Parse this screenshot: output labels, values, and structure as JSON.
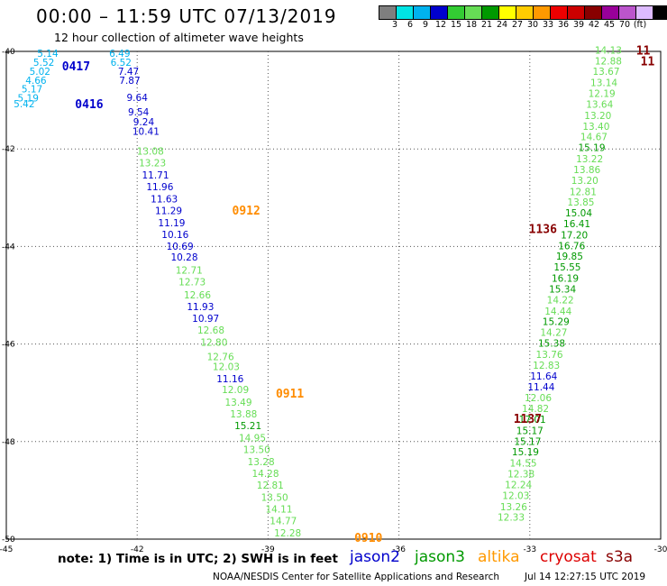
{
  "header": {
    "title": "00:00 – 11:59 UTC 07/13/2019",
    "subtitle": "12 hour collection of altimeter wave heights"
  },
  "colorbar": {
    "colors": [
      "#7f7f7f",
      "#00e5e5",
      "#00b2ee",
      "#0000cd",
      "#33cc33",
      "#66dd55",
      "#009900",
      "#ffff00",
      "#ffcc00",
      "#ff9900",
      "#ee0000",
      "#cc0000",
      "#880000",
      "#990099",
      "#bb55cc",
      "#ddbbff",
      "#000000"
    ],
    "labels": [
      "3",
      "6",
      "9",
      "12",
      "15",
      "18",
      "21",
      "24",
      "27",
      "30",
      "33",
      "36",
      "39",
      "42",
      "45",
      "70",
      "(ft)"
    ]
  },
  "chart_data": {
    "type": "scatter",
    "xlim": [
      -45,
      -30
    ],
    "ylim": [
      -50,
      -40
    ],
    "grid": true,
    "xticks": [
      "-45",
      "-42",
      "-39",
      "-36",
      "-33",
      "-30"
    ],
    "yticks": [
      "-40",
      "-42",
      "-44",
      "-46",
      "-48",
      "-50"
    ],
    "tracks": [
      {
        "name": "0416/0417",
        "labels": [
          {
            "text": "0417",
            "color": "#0000cc",
            "lon": -43.4,
            "lat": -40.3
          },
          {
            "text": "0416",
            "color": "#0000cc",
            "lon": -43.1,
            "lat": -41.07
          }
        ],
        "points": [
          {
            "lon": -44.05,
            "lat": -40.04,
            "v": "5.14",
            "c": "#00b2ee"
          },
          {
            "lon": -44.14,
            "lat": -40.22,
            "v": "5.52",
            "c": "#00b2ee"
          },
          {
            "lon": -44.23,
            "lat": -40.41,
            "v": "5.02",
            "c": "#00b2ee"
          },
          {
            "lon": -44.32,
            "lat": -40.59,
            "v": "4.66",
            "c": "#00b2ee"
          },
          {
            "lon": -44.41,
            "lat": -40.77,
            "v": "5.17",
            "c": "#00b2ee"
          },
          {
            "lon": -44.5,
            "lat": -40.95,
            "v": "5.19",
            "c": "#00b2ee"
          },
          {
            "lon": -44.59,
            "lat": -41.07,
            "v": "5.42",
            "c": "#00b2ee"
          }
        ]
      },
      {
        "name": "0912/0911/0910",
        "labels": [
          {
            "text": "0912",
            "color": "#ff8c00",
            "lon": -39.5,
            "lat": -43.25
          },
          {
            "text": "0911",
            "color": "#ff8c00",
            "lon": -38.5,
            "lat": -47.01
          },
          {
            "text": "0910",
            "color": "#ff8c00",
            "lon": -36.7,
            "lat": -49.96
          }
        ],
        "points": [
          {
            "lon": -42.4,
            "lat": -40.04,
            "v": "6.49",
            "c": "#00b2ee"
          },
          {
            "lon": -42.37,
            "lat": -40.22,
            "v": "6.52",
            "c": "#00b2ee"
          },
          {
            "lon": -42.2,
            "lat": -40.41,
            "v": "7.47",
            "c": "#0000cd"
          },
          {
            "lon": -42.17,
            "lat": -40.59,
            "v": "7.87",
            "c": "#0000cd"
          },
          {
            "lon": -42.0,
            "lat": -40.94,
            "v": "9.64",
            "c": "#0000cd"
          },
          {
            "lon": -41.97,
            "lat": -41.24,
            "v": "9.54",
            "c": "#0000cd"
          },
          {
            "lon": -41.85,
            "lat": -41.44,
            "v": "9.24",
            "c": "#0000cd"
          },
          {
            "lon": -41.8,
            "lat": -41.64,
            "v": "10.41",
            "c": "#0000cd"
          },
          {
            "lon": -41.7,
            "lat": -42.04,
            "v": "13.08",
            "c": "#66dd55"
          },
          {
            "lon": -41.65,
            "lat": -42.28,
            "v": "13.23",
            "c": "#66dd55"
          },
          {
            "lon": -41.58,
            "lat": -42.53,
            "v": "11.71",
            "c": "#0000cd"
          },
          {
            "lon": -41.48,
            "lat": -42.77,
            "v": "11.96",
            "c": "#0000cd"
          },
          {
            "lon": -41.38,
            "lat": -43.02,
            "v": "11.63",
            "c": "#0000cd"
          },
          {
            "lon": -41.28,
            "lat": -43.26,
            "v": "11.29",
            "c": "#0000cd"
          },
          {
            "lon": -41.21,
            "lat": -43.51,
            "v": "11.19",
            "c": "#0000cd"
          },
          {
            "lon": -41.13,
            "lat": -43.75,
            "v": "10.16",
            "c": "#0000cd"
          },
          {
            "lon": -41.02,
            "lat": -43.99,
            "v": "10.69",
            "c": "#0000cd"
          },
          {
            "lon": -40.92,
            "lat": -44.21,
            "v": "10.28",
            "c": "#0000cd"
          },
          {
            "lon": -40.81,
            "lat": -44.48,
            "v": "12.71",
            "c": "#66dd55"
          },
          {
            "lon": -40.74,
            "lat": -44.72,
            "v": "12.73",
            "c": "#66dd55"
          },
          {
            "lon": -40.62,
            "lat": -44.99,
            "v": "12.66",
            "c": "#66dd55"
          },
          {
            "lon": -40.55,
            "lat": -45.23,
            "v": "11.93",
            "c": "#0000cd"
          },
          {
            "lon": -40.43,
            "lat": -45.47,
            "v": "10.97",
            "c": "#0000cd"
          },
          {
            "lon": -40.31,
            "lat": -45.71,
            "v": "12.68",
            "c": "#66dd55"
          },
          {
            "lon": -40.24,
            "lat": -45.96,
            "v": "12.80",
            "c": "#66dd55"
          },
          {
            "lon": -40.09,
            "lat": -46.26,
            "v": "12.76",
            "c": "#66dd55"
          },
          {
            "lon": -39.96,
            "lat": -46.46,
            "v": "12.03",
            "c": "#66dd55"
          },
          {
            "lon": -39.87,
            "lat": -46.71,
            "v": "11.16",
            "c": "#0000cd"
          },
          {
            "lon": -39.75,
            "lat": -46.93,
            "v": "12.09",
            "c": "#66dd55"
          },
          {
            "lon": -39.68,
            "lat": -47.19,
            "v": "13.49",
            "c": "#66dd55"
          },
          {
            "lon": -39.56,
            "lat": -47.43,
            "v": "13.88",
            "c": "#66dd55"
          },
          {
            "lon": -39.46,
            "lat": -47.67,
            "v": "15.21",
            "c": "#009900"
          },
          {
            "lon": -39.36,
            "lat": -47.92,
            "v": "14.95",
            "c": "#66dd55"
          },
          {
            "lon": -39.26,
            "lat": -48.16,
            "v": "13.50",
            "c": "#66dd55"
          },
          {
            "lon": -39.16,
            "lat": -48.41,
            "v": "13.28",
            "c": "#66dd55"
          },
          {
            "lon": -39.06,
            "lat": -48.65,
            "v": "14.28",
            "c": "#66dd55"
          },
          {
            "lon": -38.95,
            "lat": -48.89,
            "v": "12.81",
            "c": "#66dd55"
          },
          {
            "lon": -38.85,
            "lat": -49.14,
            "v": "13.50",
            "c": "#66dd55"
          },
          {
            "lon": -38.75,
            "lat": -49.38,
            "v": "14.11",
            "c": "#66dd55"
          },
          {
            "lon": -38.65,
            "lat": -49.62,
            "v": "14.77",
            "c": "#66dd55"
          },
          {
            "lon": -38.55,
            "lat": -49.87,
            "v": "12.28",
            "c": "#66dd55"
          }
        ]
      },
      {
        "name": "1136/1137",
        "labels": [
          {
            "text": "1136",
            "color": "#880000",
            "lon": -32.7,
            "lat": -43.63
          },
          {
            "text": "1137",
            "color": "#880000",
            "lon": -33.05,
            "lat": -47.52
          },
          {
            "text": "11",
            "color": "#880000",
            "lon": -30.4,
            "lat": -39.97
          },
          {
            "text": "11",
            "color": "#880000",
            "lon": -30.3,
            "lat": -40.19
          }
        ],
        "points": [
          {
            "lon": -31.2,
            "lat": -39.97,
            "v": "14.13",
            "c": "#66dd55"
          },
          {
            "lon": -31.2,
            "lat": -40.19,
            "v": "12.88",
            "c": "#66dd55"
          },
          {
            "lon": -31.25,
            "lat": -40.41,
            "v": "13.67",
            "c": "#66dd55"
          },
          {
            "lon": -31.3,
            "lat": -40.64,
            "v": "13.14",
            "c": "#66dd55"
          },
          {
            "lon": -31.35,
            "lat": -40.86,
            "v": "12.19",
            "c": "#66dd55"
          },
          {
            "lon": -31.4,
            "lat": -41.08,
            "v": "13.64",
            "c": "#66dd55"
          },
          {
            "lon": -31.44,
            "lat": -41.31,
            "v": "13.20",
            "c": "#66dd55"
          },
          {
            "lon": -31.48,
            "lat": -41.53,
            "v": "13.40",
            "c": "#66dd55"
          },
          {
            "lon": -31.53,
            "lat": -41.75,
            "v": "14.67",
            "c": "#66dd55"
          },
          {
            "lon": -31.58,
            "lat": -41.97,
            "v": "15.19",
            "c": "#009900"
          },
          {
            "lon": -31.63,
            "lat": -42.2,
            "v": "13.22",
            "c": "#66dd55"
          },
          {
            "lon": -31.69,
            "lat": -42.42,
            "v": "13.86",
            "c": "#66dd55"
          },
          {
            "lon": -31.74,
            "lat": -42.64,
            "v": "13.20",
            "c": "#66dd55"
          },
          {
            "lon": -31.78,
            "lat": -42.87,
            "v": "12.81",
            "c": "#66dd55"
          },
          {
            "lon": -31.83,
            "lat": -43.09,
            "v": "13.85",
            "c": "#66dd55"
          },
          {
            "lon": -31.88,
            "lat": -43.31,
            "v": "15.04",
            "c": "#009900"
          },
          {
            "lon": -31.92,
            "lat": -43.53,
            "v": "16.41",
            "c": "#009900"
          },
          {
            "lon": -31.98,
            "lat": -43.76,
            "v": "17.20",
            "c": "#009900"
          },
          {
            "lon": -32.04,
            "lat": -43.98,
            "v": "16.76",
            "c": "#009900"
          },
          {
            "lon": -32.09,
            "lat": -44.2,
            "v": "19.85",
            "c": "#009900"
          },
          {
            "lon": -32.14,
            "lat": -44.42,
            "v": "15.55",
            "c": "#009900"
          },
          {
            "lon": -32.19,
            "lat": -44.65,
            "v": "16.19",
            "c": "#009900"
          },
          {
            "lon": -32.25,
            "lat": -44.87,
            "v": "15.34",
            "c": "#009900"
          },
          {
            "lon": -32.3,
            "lat": -45.09,
            "v": "14.22",
            "c": "#66dd55"
          },
          {
            "lon": -32.35,
            "lat": -45.32,
            "v": "14.44",
            "c": "#66dd55"
          },
          {
            "lon": -32.4,
            "lat": -45.54,
            "v": "15.29",
            "c": "#009900"
          },
          {
            "lon": -32.45,
            "lat": -45.76,
            "v": "14.27",
            "c": "#66dd55"
          },
          {
            "lon": -32.5,
            "lat": -45.98,
            "v": "15.38",
            "c": "#009900"
          },
          {
            "lon": -32.55,
            "lat": -46.21,
            "v": "13.76",
            "c": "#66dd55"
          },
          {
            "lon": -32.62,
            "lat": -46.43,
            "v": "12.83",
            "c": "#66dd55"
          },
          {
            "lon": -32.68,
            "lat": -46.65,
            "v": "11.64",
            "c": "#0000cd"
          },
          {
            "lon": -32.74,
            "lat": -46.88,
            "v": "11.44",
            "c": "#0000cd"
          },
          {
            "lon": -32.81,
            "lat": -47.1,
            "v": "12.06",
            "c": "#66dd55"
          },
          {
            "lon": -32.87,
            "lat": -47.32,
            "v": "14.82",
            "c": "#66dd55"
          },
          {
            "lon": -32.94,
            "lat": -47.54,
            "v": "17.01",
            "c": "#009900"
          },
          {
            "lon": -33.0,
            "lat": -47.77,
            "v": "15.17",
            "c": "#009900"
          },
          {
            "lon": -33.05,
            "lat": -47.99,
            "v": "15.17",
            "c": "#009900"
          },
          {
            "lon": -33.1,
            "lat": -48.21,
            "v": "15.19",
            "c": "#009900"
          },
          {
            "lon": -33.15,
            "lat": -48.44,
            "v": "14.55",
            "c": "#66dd55"
          },
          {
            "lon": -33.2,
            "lat": -48.66,
            "v": "12.38",
            "c": "#66dd55"
          },
          {
            "lon": -33.26,
            "lat": -48.88,
            "v": "12.24",
            "c": "#66dd55"
          },
          {
            "lon": -33.32,
            "lat": -49.1,
            "v": "12.03",
            "c": "#66dd55"
          },
          {
            "lon": -33.37,
            "lat": -49.33,
            "v": "13.26",
            "c": "#66dd55"
          },
          {
            "lon": -33.43,
            "lat": -49.55,
            "v": "12.33",
            "c": "#66dd55"
          }
        ]
      }
    ]
  },
  "legend": {
    "note": "note: 1) Time is in UTC; 2) SWH is in feet",
    "satellites": [
      {
        "name": "jason2",
        "color": "#0000cc"
      },
      {
        "name": "jason3",
        "color": "#009900"
      },
      {
        "name": "altika",
        "color": "#ff9900"
      },
      {
        "name": "cryosat",
        "color": "#dd0000"
      },
      {
        "name": "s3a",
        "color": "#880000"
      }
    ]
  },
  "footer": {
    "credit": "NOAA/NESDIS Center for Satellite Applications and Research",
    "timestamp": "Jul 14 12:27:15 UTC 2019"
  }
}
